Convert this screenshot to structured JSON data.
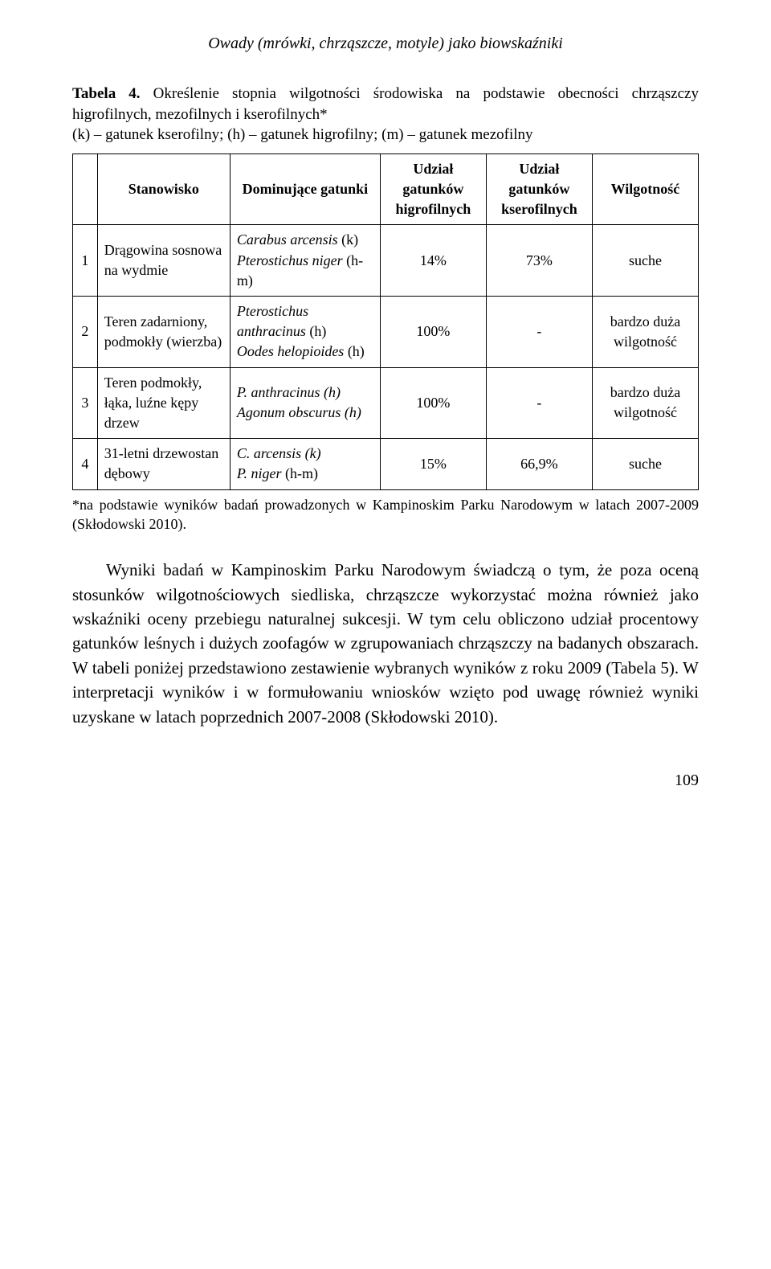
{
  "header": "Owady (mrówki, chrząszcze, motyle) jako biowskaźniki",
  "caption": {
    "label": "Tabela 4.",
    "text": " Określenie stopnia wilgotności środowiska na podstawie obecności chrząszczy higrofilnych, mezofilnych i kserofilnych*",
    "legend": "(k) – gatunek kserofilny; (h) – gatunek higrofilny; (m) – gatunek mezofilny"
  },
  "table": {
    "columns": {
      "idx": "",
      "stan": "Stanowisko",
      "dom": "Dominujące gatunki",
      "higro": "Udział gatunków higrofilnych",
      "ksero": "Udział gatunków kserofilnych",
      "wilg": "Wilgotność"
    },
    "rows": [
      {
        "idx": "1",
        "stan": "Drągowina sosnowa na wydmie",
        "dom_html": "<span class=\"italic\">Carabus arcensis</span> (k)<br><span class=\"italic\">Pterostichus niger</span> (h-m)",
        "higro": "14%",
        "ksero": "73%",
        "wilg": "suche"
      },
      {
        "idx": "2",
        "stan": "Teren zadarniony, podmokły (wierzba)",
        "dom_html": "<span class=\"italic\">Pterostichus anthracinus</span> (h)<br><span class=\"italic\">Oodes helopioides</span> (h)",
        "higro": "100%",
        "ksero": "-",
        "wilg": "bardzo duża wilgotność"
      },
      {
        "idx": "3",
        "stan": "Teren podmokły, łąka, luźne kępy drzew",
        "dom_html": "<span class=\"italic\">P. anthracinus (h)<br>Agonum obscurus (h)</span>",
        "higro": "100%",
        "ksero": "-",
        "wilg": "bardzo duża wilgotność"
      },
      {
        "idx": "4",
        "stan": "31-letni drzewostan dębowy",
        "dom_html": "<span class=\"italic\">C. arcensis (k)<br>P. niger</span> (h-m)",
        "higro": "15%",
        "ksero": "66,9%",
        "wilg": "suche"
      }
    ]
  },
  "footnote": "*na podstawie wyników badań prowadzonych w Kampinoskim Parku Narodowym w latach 2007-2009 (Skłodowski 2010).",
  "body": "Wyniki badań w Kampinoskim Parku Narodowym świadczą o tym, że poza oceną stosunków wilgotnościowych siedliska, chrząszcze wykorzystać można również jako wskaźniki oceny przebiegu naturalnej sukcesji. W tym celu obliczono udział procentowy gatunków leśnych i dużych zoofagów w zgrupowaniach chrząszczy na badanych obszarach. W tabeli poniżej przedstawiono zestawienie wybranych wyników z roku 2009 (Tabela 5). W interpretacji wyników i w formułowaniu wniosków wzięto pod uwagę również wyniki uzyskane w latach poprzednich 2007-2008 (Skłodowski 2010).",
  "pageNumber": "109"
}
